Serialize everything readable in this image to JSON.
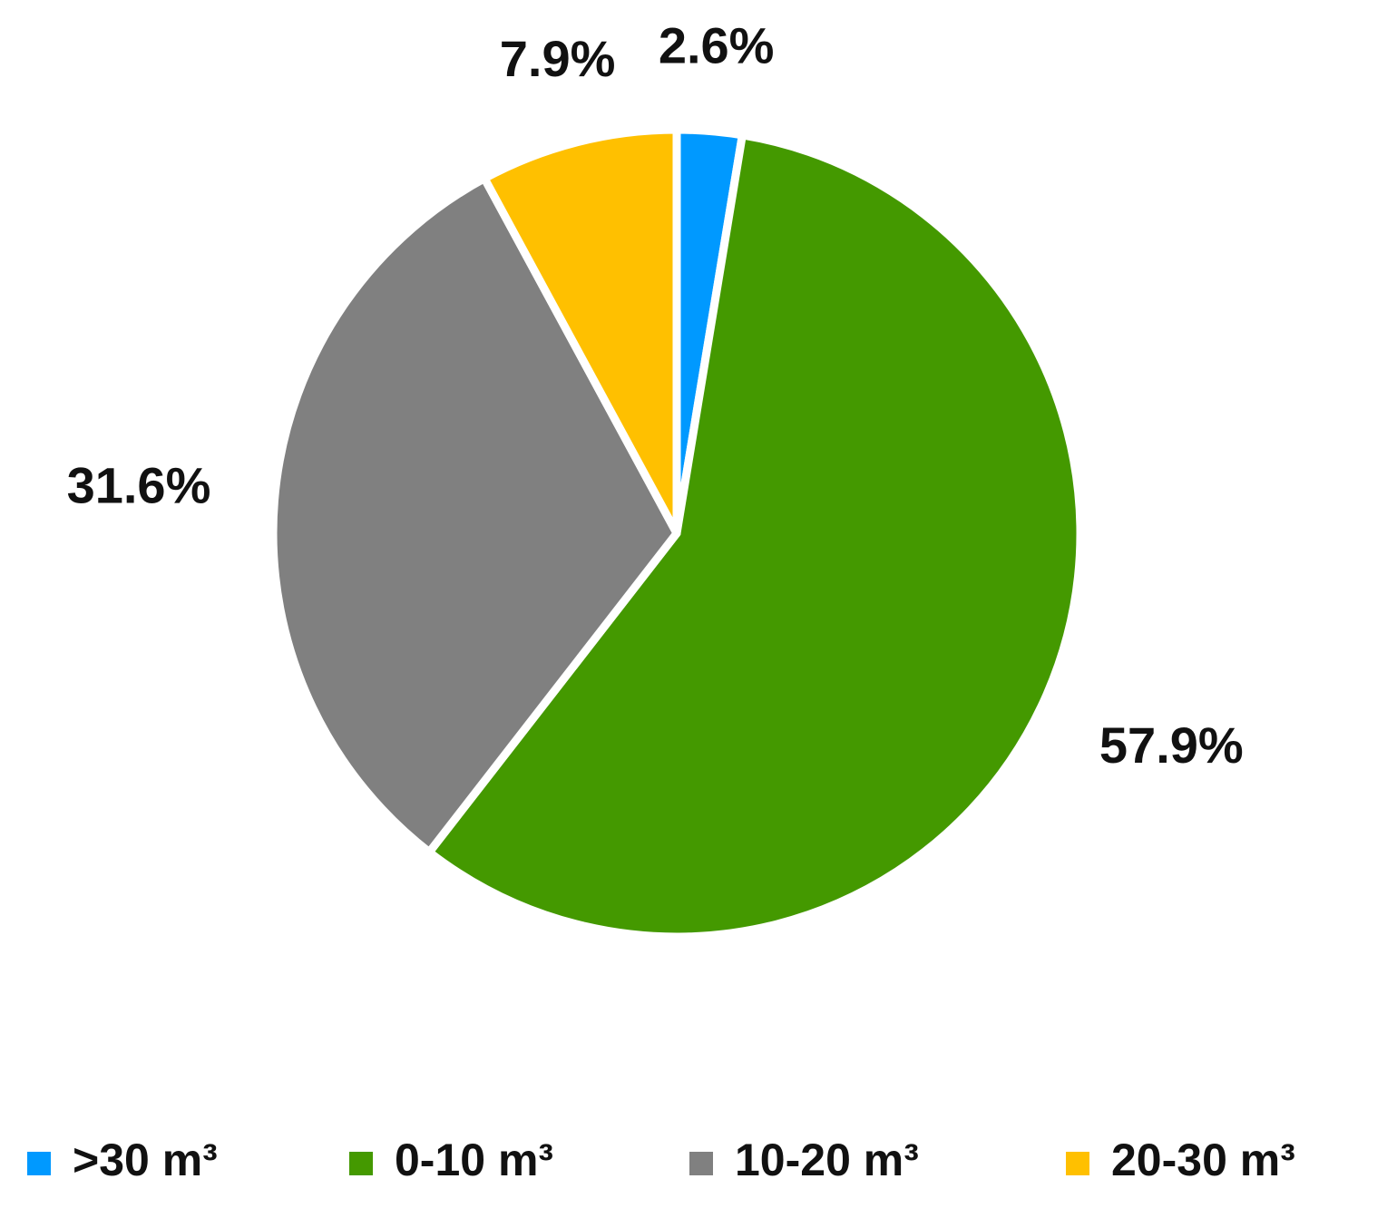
{
  "chart_data": {
    "type": "pie",
    "categories": [
      ">30 m³",
      "0-10 m³",
      "10-20 m³",
      "20-30 m³"
    ],
    "values": [
      2.6,
      57.9,
      31.6,
      7.9
    ],
    "value_labels": [
      "2.6%",
      "57.9%",
      "31.6%",
      "7.9%"
    ],
    "colors": [
      "#0099ff",
      "#449900",
      "#808080",
      "#ffc000"
    ],
    "legend": "bottom"
  }
}
